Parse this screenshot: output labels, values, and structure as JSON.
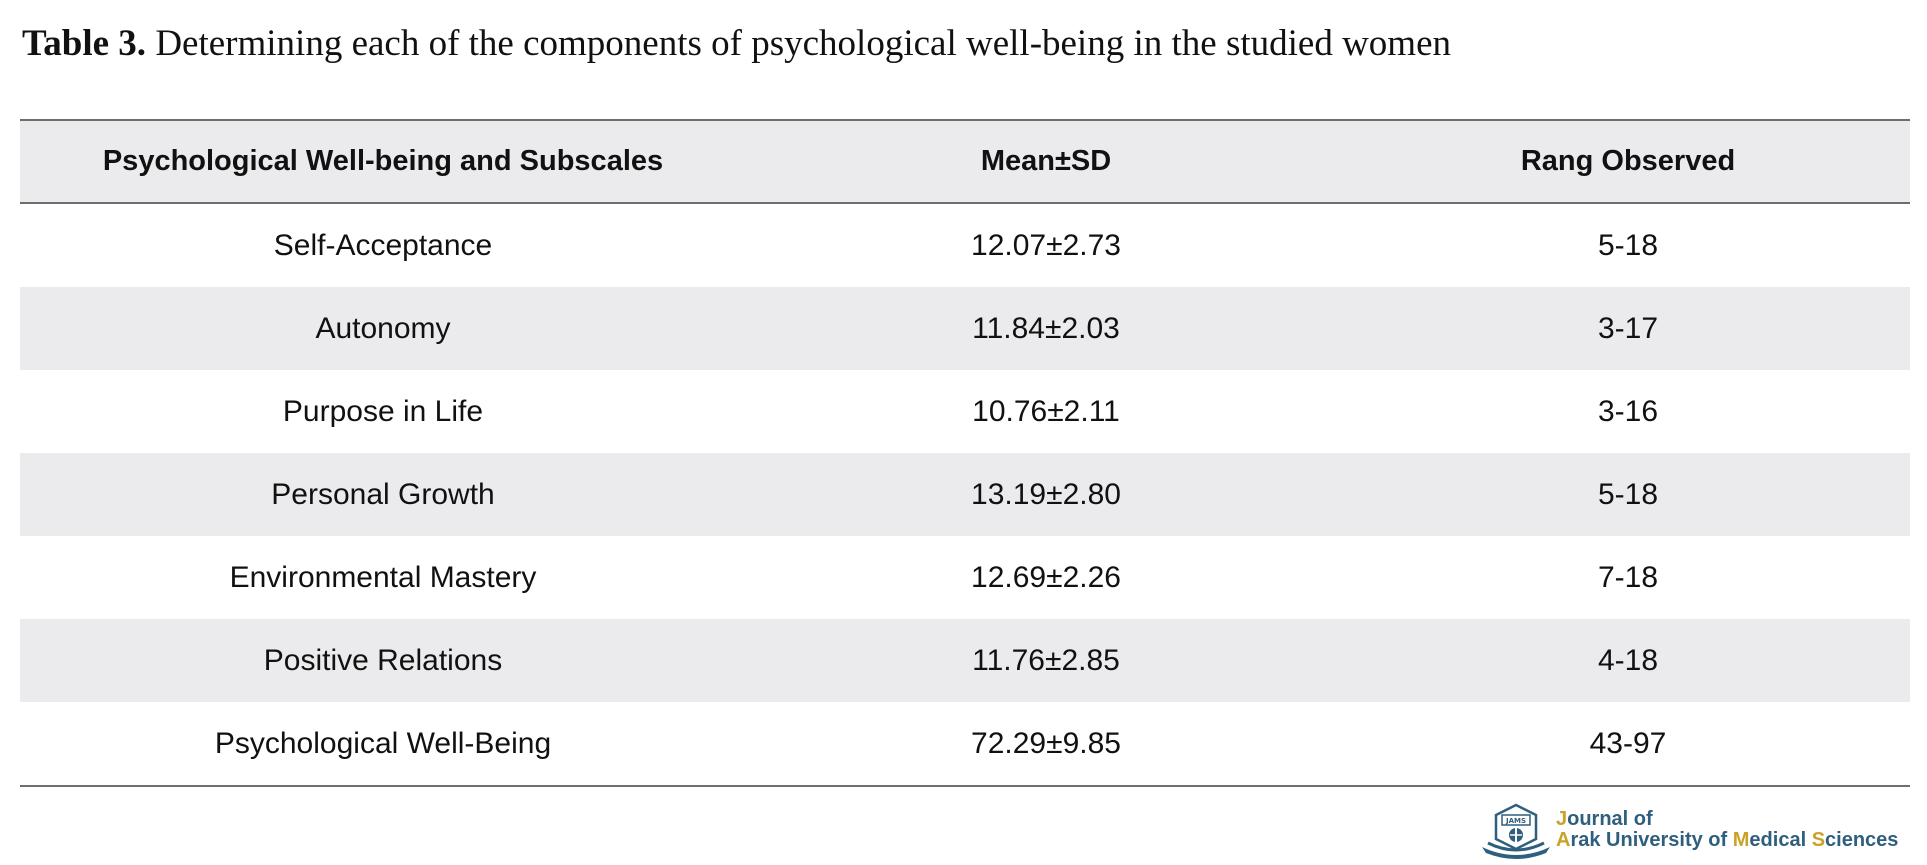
{
  "caption": {
    "label": "Table 3.",
    "text": "Determining each of the components of psychological well-being in the studied women"
  },
  "table": {
    "headers": [
      "Psychological Well-being and Subscales",
      "Mean±SD",
      "Rang Observed"
    ],
    "rows": [
      [
        "Self-Acceptance",
        "12.07±2.73",
        "5-18"
      ],
      [
        "Autonomy",
        "11.84±2.03",
        "3-17"
      ],
      [
        "Purpose in Life",
        "10.76±2.11",
        "3-16"
      ],
      [
        "Personal Growth",
        "13.19±2.80",
        "5-18"
      ],
      [
        "Environmental Mastery",
        "12.69±2.26",
        "7-18"
      ],
      [
        "Positive Relations",
        "11.76±2.85",
        "4-18"
      ],
      [
        "Psychological Well-Being",
        "72.29±9.85",
        "43-97"
      ]
    ]
  },
  "logo": {
    "line1_initial": "J",
    "line1_rest": "ournal of",
    "line2": [
      {
        "text": "A",
        "accent": true
      },
      {
        "text": "rak University of ",
        "accent": false
      },
      {
        "text": "M",
        "accent": true
      },
      {
        "text": "edical ",
        "accent": false
      },
      {
        "text": "S",
        "accent": true
      },
      {
        "text": "ciences",
        "accent": false
      }
    ],
    "emblem_text": "JAMS",
    "colors": {
      "primary": "#2f5f7e",
      "accent": "#c9a227"
    }
  }
}
